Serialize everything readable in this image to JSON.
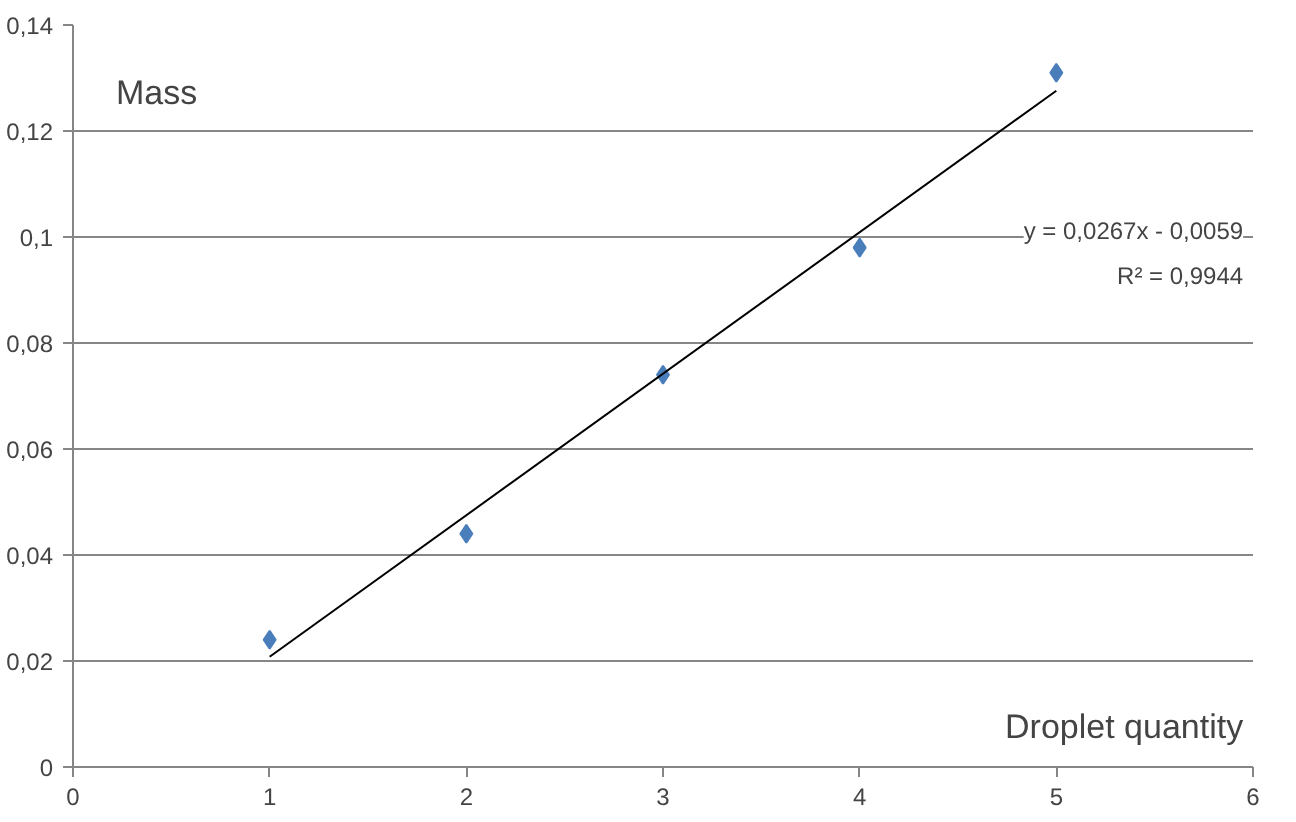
{
  "chart_data": {
    "type": "scatter",
    "xlabel": "Droplet quantity",
    "ylabel": "Mass",
    "x": [
      1,
      2,
      3,
      4,
      5
    ],
    "series": [
      {
        "color": "#4a7ebb",
        "values": [
          0.024,
          0.044,
          0.074,
          0.098,
          0.131
        ],
        "marker": "diamond"
      },
      {
        "type": "line",
        "color": "#000000",
        "x": [
          1,
          5
        ],
        "values": [
          0.0208,
          0.1276
        ],
        "marker": "none",
        "line_style": "solid"
      }
    ],
    "annotations": [
      "y = 0,0267x - 0,0059",
      "R² = 0,9944"
    ],
    "xlim": [
      0,
      6
    ],
    "ylim": [
      0,
      0.14
    ],
    "xticks": [
      0,
      1,
      2,
      3,
      4,
      5,
      6
    ],
    "yticks": [
      0,
      {
        "value": 0.02,
        "label": "0,02"
      },
      {
        "value": 0.04,
        "label": "0,04"
      },
      {
        "value": 0.06,
        "label": "0,06"
      },
      {
        "value": 0.08,
        "label": "0,08"
      },
      {
        "value": 0.1,
        "label": "0,1"
      },
      {
        "value": 0.12,
        "label": "0,12"
      },
      {
        "value": 0.14,
        "label": "0,14"
      }
    ],
    "grid": "y"
  }
}
